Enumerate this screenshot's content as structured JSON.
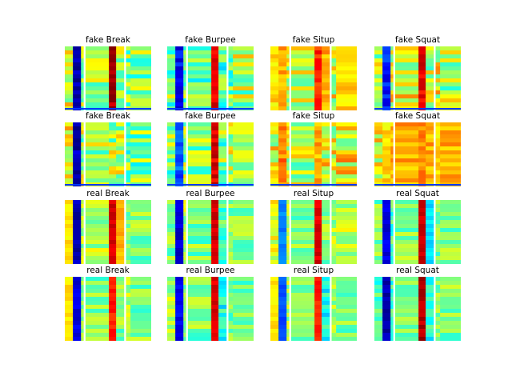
{
  "figure": {
    "type": "heatmap-grid",
    "rows": 4,
    "cols": 4,
    "colormap": "jet"
  },
  "chart_data": [
    {
      "type": "heatmap",
      "title": "fake Break",
      "channels": [
        0.6,
        0.05,
        0.55,
        0.55,
        0.97,
        0.55,
        0.5,
        0.5
      ],
      "divider_bottom": true
    },
    {
      "type": "heatmap",
      "title": "fake Burpee",
      "channels": [
        0.5,
        0.12,
        0.5,
        0.5,
        0.9,
        0.45,
        0.5,
        0.55
      ],
      "divider_bottom": true
    },
    {
      "type": "heatmap",
      "title": "fake Situp",
      "channels": [
        0.65,
        0.7,
        0.6,
        0.55,
        0.85,
        0.7,
        0.6,
        0.65
      ],
      "divider_bottom": false
    },
    {
      "type": "heatmap",
      "title": "fake Squat",
      "channels": [
        0.55,
        0.15,
        0.6,
        0.6,
        0.9,
        0.55,
        0.6,
        0.55
      ],
      "divider_bottom": true
    },
    {
      "type": "heatmap",
      "title": "fake Break",
      "channels": [
        0.6,
        0.05,
        0.55,
        0.55,
        0.55,
        0.55,
        0.5,
        0.5
      ],
      "divider_bottom": true
    },
    {
      "type": "heatmap",
      "title": "fake Burpee",
      "channels": [
        0.5,
        0.2,
        0.55,
        0.5,
        0.9,
        0.5,
        0.55,
        0.6
      ],
      "divider_bottom": true
    },
    {
      "type": "heatmap",
      "title": "fake Situp",
      "channels": [
        0.6,
        0.75,
        0.6,
        0.55,
        0.7,
        0.6,
        0.6,
        0.62
      ],
      "divider_bottom": true
    },
    {
      "type": "heatmap",
      "title": "fake Squat",
      "channels": [
        0.6,
        0.65,
        0.7,
        0.7,
        0.75,
        0.7,
        0.65,
        0.7
      ],
      "divider_bottom": true
    },
    {
      "type": "heatmap",
      "title": "real Break",
      "channels": [
        0.65,
        0.05,
        0.55,
        0.55,
        0.92,
        0.7,
        0.5,
        0.5
      ],
      "divider_bottom": false
    },
    {
      "type": "heatmap",
      "title": "real Burpee",
      "channels": [
        0.5,
        0.08,
        0.55,
        0.5,
        0.92,
        0.45,
        0.5,
        0.5
      ],
      "divider_bottom": false
    },
    {
      "type": "heatmap",
      "title": "real Situp",
      "channels": [
        0.6,
        0.25,
        0.55,
        0.5,
        0.9,
        0.5,
        0.55,
        0.55
      ],
      "divider_bottom": false
    },
    {
      "type": "heatmap",
      "title": "real Squat",
      "channels": [
        0.5,
        0.1,
        0.45,
        0.5,
        0.92,
        0.35,
        0.5,
        0.5
      ],
      "divider_bottom": false
    },
    {
      "type": "heatmap",
      "title": "real Break",
      "channels": [
        0.65,
        0.1,
        0.5,
        0.5,
        0.85,
        0.5,
        0.55,
        0.5
      ],
      "divider_bottom": false
    },
    {
      "type": "heatmap",
      "title": "real Burpee",
      "channels": [
        0.55,
        0.12,
        0.5,
        0.5,
        0.9,
        0.4,
        0.5,
        0.5
      ],
      "divider_bottom": false
    },
    {
      "type": "heatmap",
      "title": "real Situp",
      "channels": [
        0.65,
        0.2,
        0.55,
        0.5,
        0.85,
        0.4,
        0.55,
        0.5
      ],
      "divider_bottom": false
    },
    {
      "type": "heatmap",
      "title": "real Squat",
      "channels": [
        0.45,
        0.05,
        0.45,
        0.5,
        0.95,
        0.4,
        0.5,
        0.5
      ],
      "divider_bottom": false
    }
  ]
}
